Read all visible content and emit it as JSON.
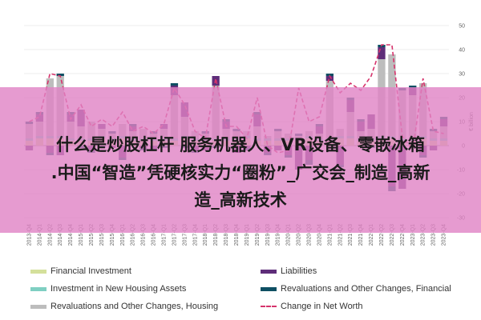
{
  "chart_data": {
    "type": "bar",
    "ylabel": "€ billion",
    "ylim": [
      -30,
      50
    ],
    "yticks": [
      -30,
      -20,
      -10,
      0,
      10,
      20,
      30,
      40,
      50
    ],
    "grid": true,
    "legend_position": "bottom",
    "categories": [
      "2013-Q4",
      "2014-Q1",
      "2014-Q2",
      "2014-Q3",
      "2014-Q4",
      "2015-Q1",
      "2015-Q2",
      "2015-Q3",
      "2015-Q4",
      "2016-Q1",
      "2016-Q2",
      "2016-Q3",
      "2016-Q4",
      "2017-Q1",
      "2017-Q2",
      "2017-Q3",
      "2017-Q4",
      "2018-Q1",
      "2018-Q2",
      "2018-Q3",
      "2018-Q4",
      "2019-Q1",
      "2019-Q2",
      "2019-Q3",
      "2019-Q4",
      "2020-Q1",
      "2020-Q2",
      "2020-Q3",
      "2020-Q4",
      "2021-Q1",
      "2021-Q2",
      "2021-Q3",
      "2021-Q4",
      "2022-Q1",
      "2022-Q2",
      "2022-Q3",
      "2022-Q4",
      "2023-Q1",
      "2023-Q2",
      "2023-Q3",
      "2023-Q4"
    ],
    "series": [
      {
        "name": "Financial Investment",
        "color": "#d4e09b",
        "kind": "bar",
        "values": [
          2,
          3,
          3,
          3,
          2,
          2,
          2,
          3,
          2,
          3,
          2,
          2,
          2,
          2,
          2,
          3,
          2,
          2,
          2,
          2,
          2,
          3,
          2,
          2,
          2,
          2,
          2,
          3,
          2,
          2,
          3,
          3,
          2,
          2,
          3,
          3,
          2,
          2,
          3,
          2,
          2
        ]
      },
      {
        "name": "Investment in New Housing Assets",
        "color": "#7fcfc2",
        "kind": "bar",
        "values": [
          1,
          1,
          1,
          1,
          1,
          1,
          1,
          1,
          1,
          1,
          1,
          1,
          1,
          1,
          1,
          1,
          1,
          1,
          1,
          1,
          1,
          1,
          1,
          1,
          1,
          1,
          1,
          1,
          1,
          1,
          1,
          1,
          1,
          1,
          1,
          1,
          1,
          1,
          1,
          1,
          1
        ]
      },
      {
        "name": "Revaluations and Other Changes, Housing",
        "color": "#bdbdbd",
        "kind": "bar",
        "values": [
          6,
          6,
          24,
          25,
          7,
          5,
          7,
          3,
          2,
          5,
          3,
          4,
          2,
          4,
          18,
          8,
          3,
          2,
          22,
          4,
          3,
          2,
          5,
          1,
          3,
          2,
          1,
          2,
          2,
          24,
          3,
          10,
          3,
          4,
          32,
          34,
          20,
          18,
          22,
          3,
          5
        ]
      },
      {
        "name": "Liabilities",
        "color": "#5e2d79",
        "kind": "bar",
        "values": [
          -2,
          3,
          -3,
          -4,
          3,
          7,
          -2,
          2,
          -1,
          -5,
          2,
          -1,
          -2,
          2,
          4,
          6,
          -2,
          -2,
          4,
          3,
          -3,
          -1,
          5,
          -3,
          -2,
          -4,
          -10,
          -6,
          3,
          2,
          -8,
          5,
          4,
          6,
          5,
          -17,
          -18,
          3,
          -4,
          -2,
          3
        ]
      },
      {
        "name": "Revaluations and Other Changes, Financial",
        "color": "#0e4f63",
        "kind": "bar",
        "values": [
          1,
          1,
          -1,
          1,
          1,
          -1,
          -1,
          -1,
          1,
          -1,
          1,
          -1,
          1,
          -1,
          1,
          -1,
          -1,
          1,
          -1,
          1,
          1,
          -1,
          1,
          -1,
          1,
          -1,
          1,
          -2,
          1,
          1,
          -1,
          1,
          1,
          -1,
          1,
          -2,
          1,
          1,
          -1,
          1,
          1
        ]
      },
      {
        "name": "Change in Net Worth",
        "color": "#d6336c",
        "kind": "line",
        "values": [
          10,
          12,
          30,
          29,
          11,
          17,
          8,
          11,
          8,
          14,
          6,
          8,
          5,
          9,
          24,
          17,
          6,
          3,
          28,
          8,
          8,
          3,
          20,
          0,
          -3,
          -2,
          24,
          10,
          12,
          29,
          22,
          26,
          23,
          29,
          42,
          42,
          4,
          -2,
          28,
          6,
          5
        ]
      }
    ]
  },
  "banner": {
    "line1": "什么是炒股杠杆 服务机器人、VR设备、零嵌冰箱",
    "line2": ".中国“智造”凭硬核实力“圈粉”_广交会_制造_高新",
    "line3": "造_高新技术"
  }
}
